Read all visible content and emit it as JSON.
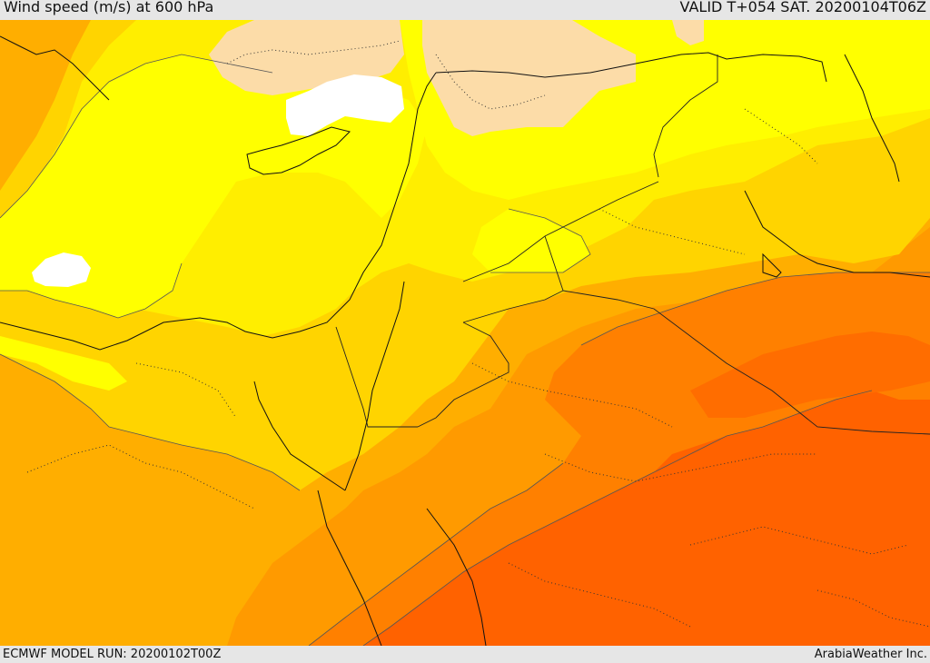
{
  "header": {
    "title": "Wind speed (m/s) at 600 hPa",
    "valid": "VALID T+054 SAT. 20200104T06Z"
  },
  "footer": {
    "model_run": "ECMWF MODEL RUN: 20200102T00Z",
    "credit": "ArabiaWeather Inc."
  },
  "colors": {
    "white": "#ffffff",
    "peach": "#fcdca8",
    "bright_yellow": "#ffff00",
    "yellow": "#ffee00",
    "gold": "#ffd400",
    "amber": "#ffae00",
    "orange": "#ff9a00",
    "deep_orange": "#ff8000",
    "red_orange": "#ff6200"
  }
}
